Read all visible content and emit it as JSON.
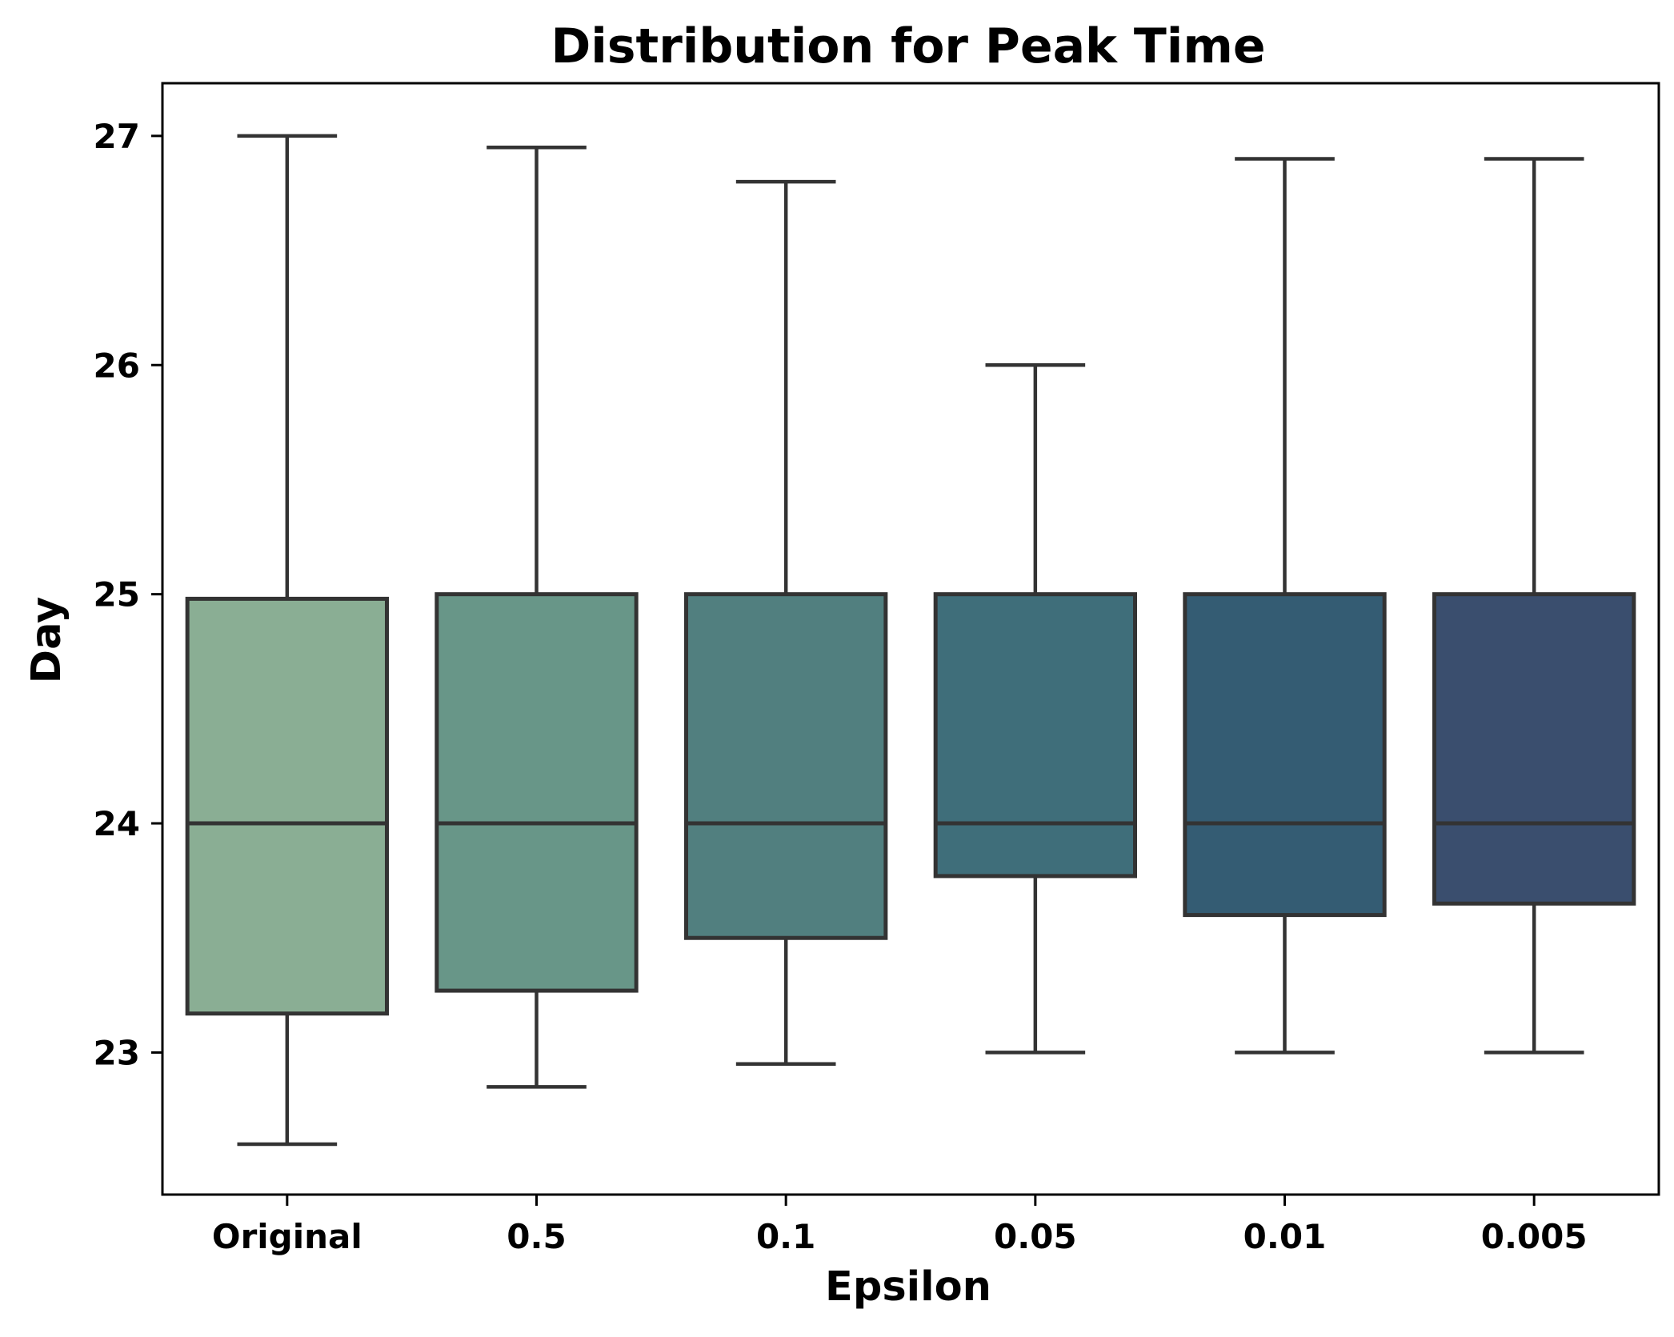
{
  "chart_data": {
    "type": "box",
    "title": "Distribution for Peak Time",
    "xlabel": "Epsilon",
    "ylabel": "Day",
    "ylim": [
      22.38,
      27.23
    ],
    "yticks": [
      23,
      24,
      25,
      26,
      27
    ],
    "yticks_text": [
      "23",
      "24",
      "25",
      "26",
      "27"
    ],
    "categories": [
      "Original",
      "0.5",
      "0.1",
      "0.05",
      "0.01",
      "0.005"
    ],
    "boxes": [
      {
        "label": "Original",
        "whisker_low": 22.6,
        "q1": 23.17,
        "median": 24.0,
        "q3": 24.98,
        "whisker_high": 27.0,
        "color": "#8aae94"
      },
      {
        "label": "0.5",
        "whisker_low": 22.85,
        "q1": 23.27,
        "median": 24.0,
        "q3": 25.0,
        "whisker_high": 26.95,
        "color": "#689688"
      },
      {
        "label": "0.1",
        "whisker_low": 22.95,
        "q1": 23.5,
        "median": 24.0,
        "q3": 25.0,
        "whisker_high": 26.8,
        "color": "#517f7f"
      },
      {
        "label": "0.05",
        "whisker_low": 23.0,
        "q1": 23.77,
        "median": 24.0,
        "q3": 25.0,
        "whisker_high": 26.0,
        "color": "#3f6e7a"
      },
      {
        "label": "0.01",
        "whisker_low": 23.0,
        "q1": 23.6,
        "median": 24.0,
        "q3": 25.0,
        "whisker_high": 26.9,
        "color": "#345c73"
      },
      {
        "label": "0.005",
        "whisker_low": 23.0,
        "q1": 23.65,
        "median": 24.0,
        "q3": 25.0,
        "whisker_high": 26.9,
        "color": "#3a4e6e"
      }
    ],
    "grid": false,
    "line_color": "#333333"
  }
}
